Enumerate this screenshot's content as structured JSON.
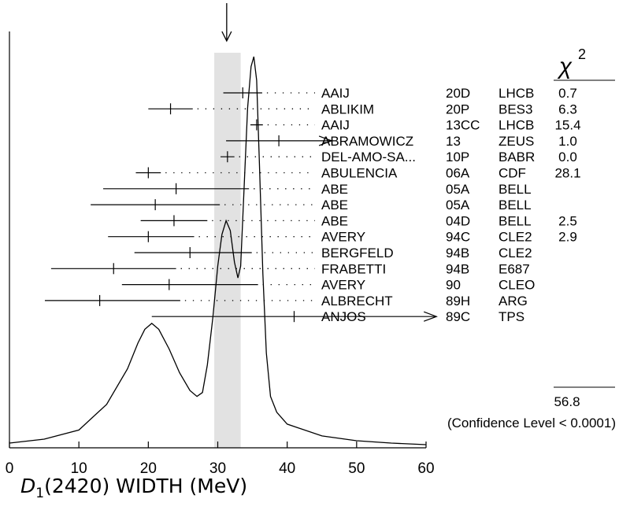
{
  "chart_data": {
    "type": "ideogram",
    "xlabel": {
      "symbol": "D",
      "subscript": "1",
      "rest": "(2420) WIDTH (MeV)"
    },
    "x_ticks": [
      0,
      10,
      20,
      30,
      40,
      50,
      60
    ],
    "xlim": [
      0,
      60
    ],
    "chi2_header": "χ",
    "chi2_sup": "2",
    "average_band": [
      29.5,
      33.3
    ],
    "measurements": [
      {
        "author": "AAIJ",
        "ref": "20D",
        "experiment": "LHCB",
        "chi2": "0.7",
        "value": 33.6,
        "err_lo": 2.8,
        "err_hi": 2.8
      },
      {
        "author": "ABLIKIM",
        "ref": "20P",
        "experiment": "BES3",
        "chi2": "6.3",
        "value": 23.2,
        "err_lo": 3.2,
        "err_hi": 3.2
      },
      {
        "author": "AAIJ",
        "ref": "13CC",
        "experiment": "LHCB",
        "chi2": "15.4",
        "value": 35.6,
        "err_lo": 0.9,
        "err_hi": 0.9
      },
      {
        "author": "ABRAMOWICZ",
        "ref": "13",
        "experiment": "ZEUS",
        "chi2": "1.0",
        "value": 38.8,
        "err_lo": 7.6,
        "err_hi": 7.6,
        "arrow": true
      },
      {
        "author": "DEL-AMO-SA...",
        "ref": "10P",
        "experiment": "BABR",
        "chi2": "0.0",
        "value": 31.4,
        "err_lo": 1.0,
        "err_hi": 1.0
      },
      {
        "author": "ABULENCIA",
        "ref": "06A",
        "experiment": "CDF",
        "chi2": "28.1",
        "value": 20.0,
        "err_lo": 1.8,
        "err_hi": 1.8
      },
      {
        "author": "ABE",
        "ref": "05A",
        "experiment": "BELL",
        "chi2": "",
        "value": 24.0,
        "err_lo": 10.5,
        "err_hi": 10.5
      },
      {
        "author": "ABE",
        "ref": "05A",
        "experiment": "BELL",
        "chi2": "",
        "value": 21.0,
        "err_lo": 9.3,
        "err_hi": 9.3
      },
      {
        "author": "ABE",
        "ref": "04D",
        "experiment": "BELL",
        "chi2": "2.5",
        "value": 23.7,
        "err_lo": 4.8,
        "err_hi": 4.8
      },
      {
        "author": "AVERY",
        "ref": "94C",
        "experiment": "CLE2",
        "chi2": "2.9",
        "value": 20.0,
        "err_lo": 5.8,
        "err_hi": 6.6
      },
      {
        "author": "BERGFELD",
        "ref": "94B",
        "experiment": "CLE2",
        "chi2": "",
        "value": 26.0,
        "err_lo": 8.0,
        "err_hi": 8.9
      },
      {
        "author": "FRABETTI",
        "ref": "94B",
        "experiment": "E687",
        "chi2": "",
        "value": 15.0,
        "err_lo": 9.0,
        "err_hi": 9.0
      },
      {
        "author": "AVERY",
        "ref": "90",
        "experiment": "CLEO",
        "chi2": "",
        "value": 23.0,
        "err_lo": 6.8,
        "err_hi": 12.8
      },
      {
        "author": "ALBRECHT",
        "ref": "89H",
        "experiment": "ARG",
        "chi2": "",
        "value": 13.0,
        "err_lo": 7.9,
        "err_hi": 11.6
      },
      {
        "author": "ANJOS",
        "ref": "89C",
        "experiment": "TPS",
        "chi2": "",
        "value": 41.0,
        "err_lo": 20.5,
        "err_hi": 20.5,
        "arrow": true
      }
    ],
    "chi2_total": "56.8",
    "confidence_level": "(Confidence Level < 0.0001)",
    "ideogram": [
      [
        0,
        0.012
      ],
      [
        5,
        0.022
      ],
      [
        10,
        0.045
      ],
      [
        14,
        0.11
      ],
      [
        17,
        0.2
      ],
      [
        18.5,
        0.265
      ],
      [
        19.5,
        0.3
      ],
      [
        20.5,
        0.315
      ],
      [
        21.5,
        0.3
      ],
      [
        23,
        0.25
      ],
      [
        24.5,
        0.19
      ],
      [
        26,
        0.145
      ],
      [
        27,
        0.13
      ],
      [
        27.8,
        0.14
      ],
      [
        28.5,
        0.21
      ],
      [
        29.3,
        0.33
      ],
      [
        30,
        0.46
      ],
      [
        30.6,
        0.54
      ],
      [
        31.2,
        0.575
      ],
      [
        31.8,
        0.55
      ],
      [
        32.4,
        0.47
      ],
      [
        32.9,
        0.43
      ],
      [
        33.3,
        0.46
      ],
      [
        33.8,
        0.66
      ],
      [
        34.3,
        0.86
      ],
      [
        34.8,
        0.965
      ],
      [
        35.2,
        0.99
      ],
      [
        35.6,
        0.93
      ],
      [
        36,
        0.72
      ],
      [
        36.5,
        0.44
      ],
      [
        37,
        0.24
      ],
      [
        37.6,
        0.13
      ],
      [
        38.5,
        0.09
      ],
      [
        40,
        0.06
      ],
      [
        45,
        0.03
      ],
      [
        50,
        0.018
      ],
      [
        55,
        0.012
      ],
      [
        60,
        0.008
      ]
    ]
  }
}
